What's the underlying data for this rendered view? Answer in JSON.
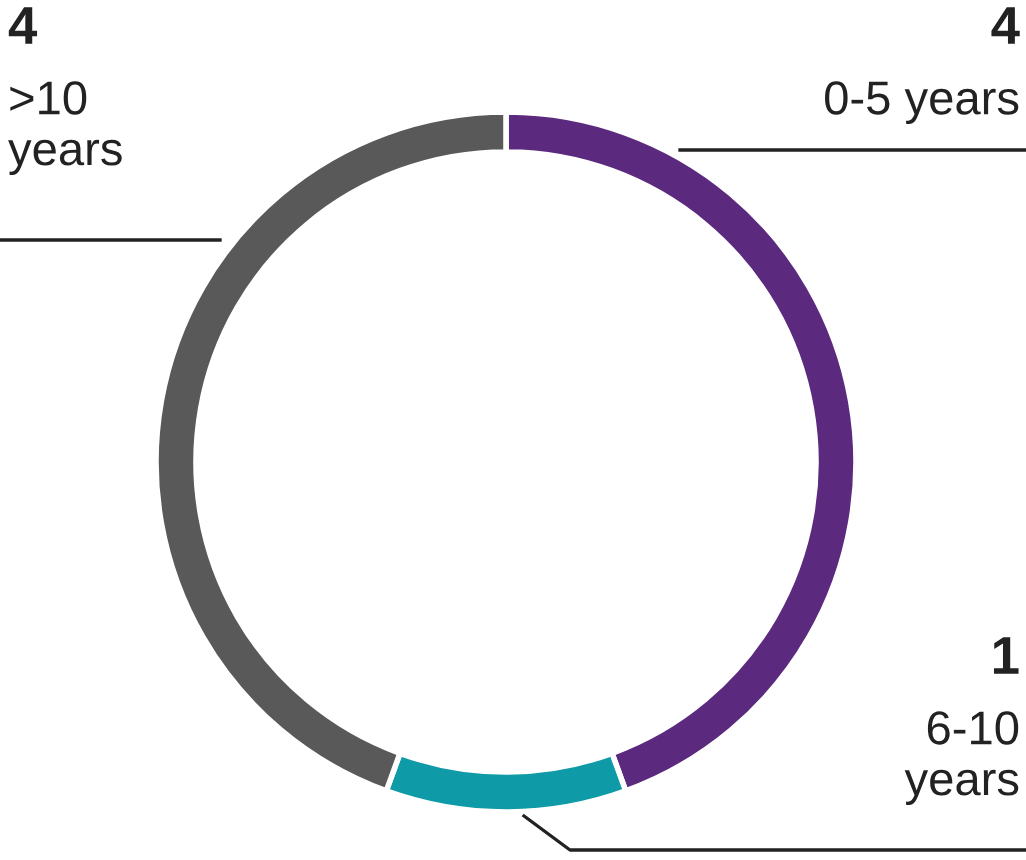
{
  "chart_data": {
    "type": "donut",
    "categories": [
      "0-5 years",
      "6-10 years",
      ">10 years"
    ],
    "values": [
      4,
      1,
      4
    ],
    "colors": [
      "#5b2a7e",
      "#0e9aa7",
      "#595959"
    ],
    "data_labels": true
  }
}
